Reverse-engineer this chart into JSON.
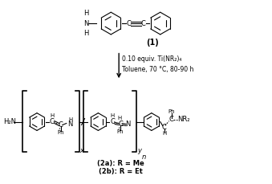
{
  "bg_color": "#ffffff",
  "fig_width": 3.39,
  "fig_height": 2.29,
  "dpi": 100,
  "compound1_label": "(1)",
  "arrow_text1": "0.10 equiv. Ti(NR₂)₄",
  "arrow_text2": "Toluene, 70 °C, 80-90 h",
  "product_label1": "(2a): R = Me",
  "product_label2": "(2b): R = Et"
}
